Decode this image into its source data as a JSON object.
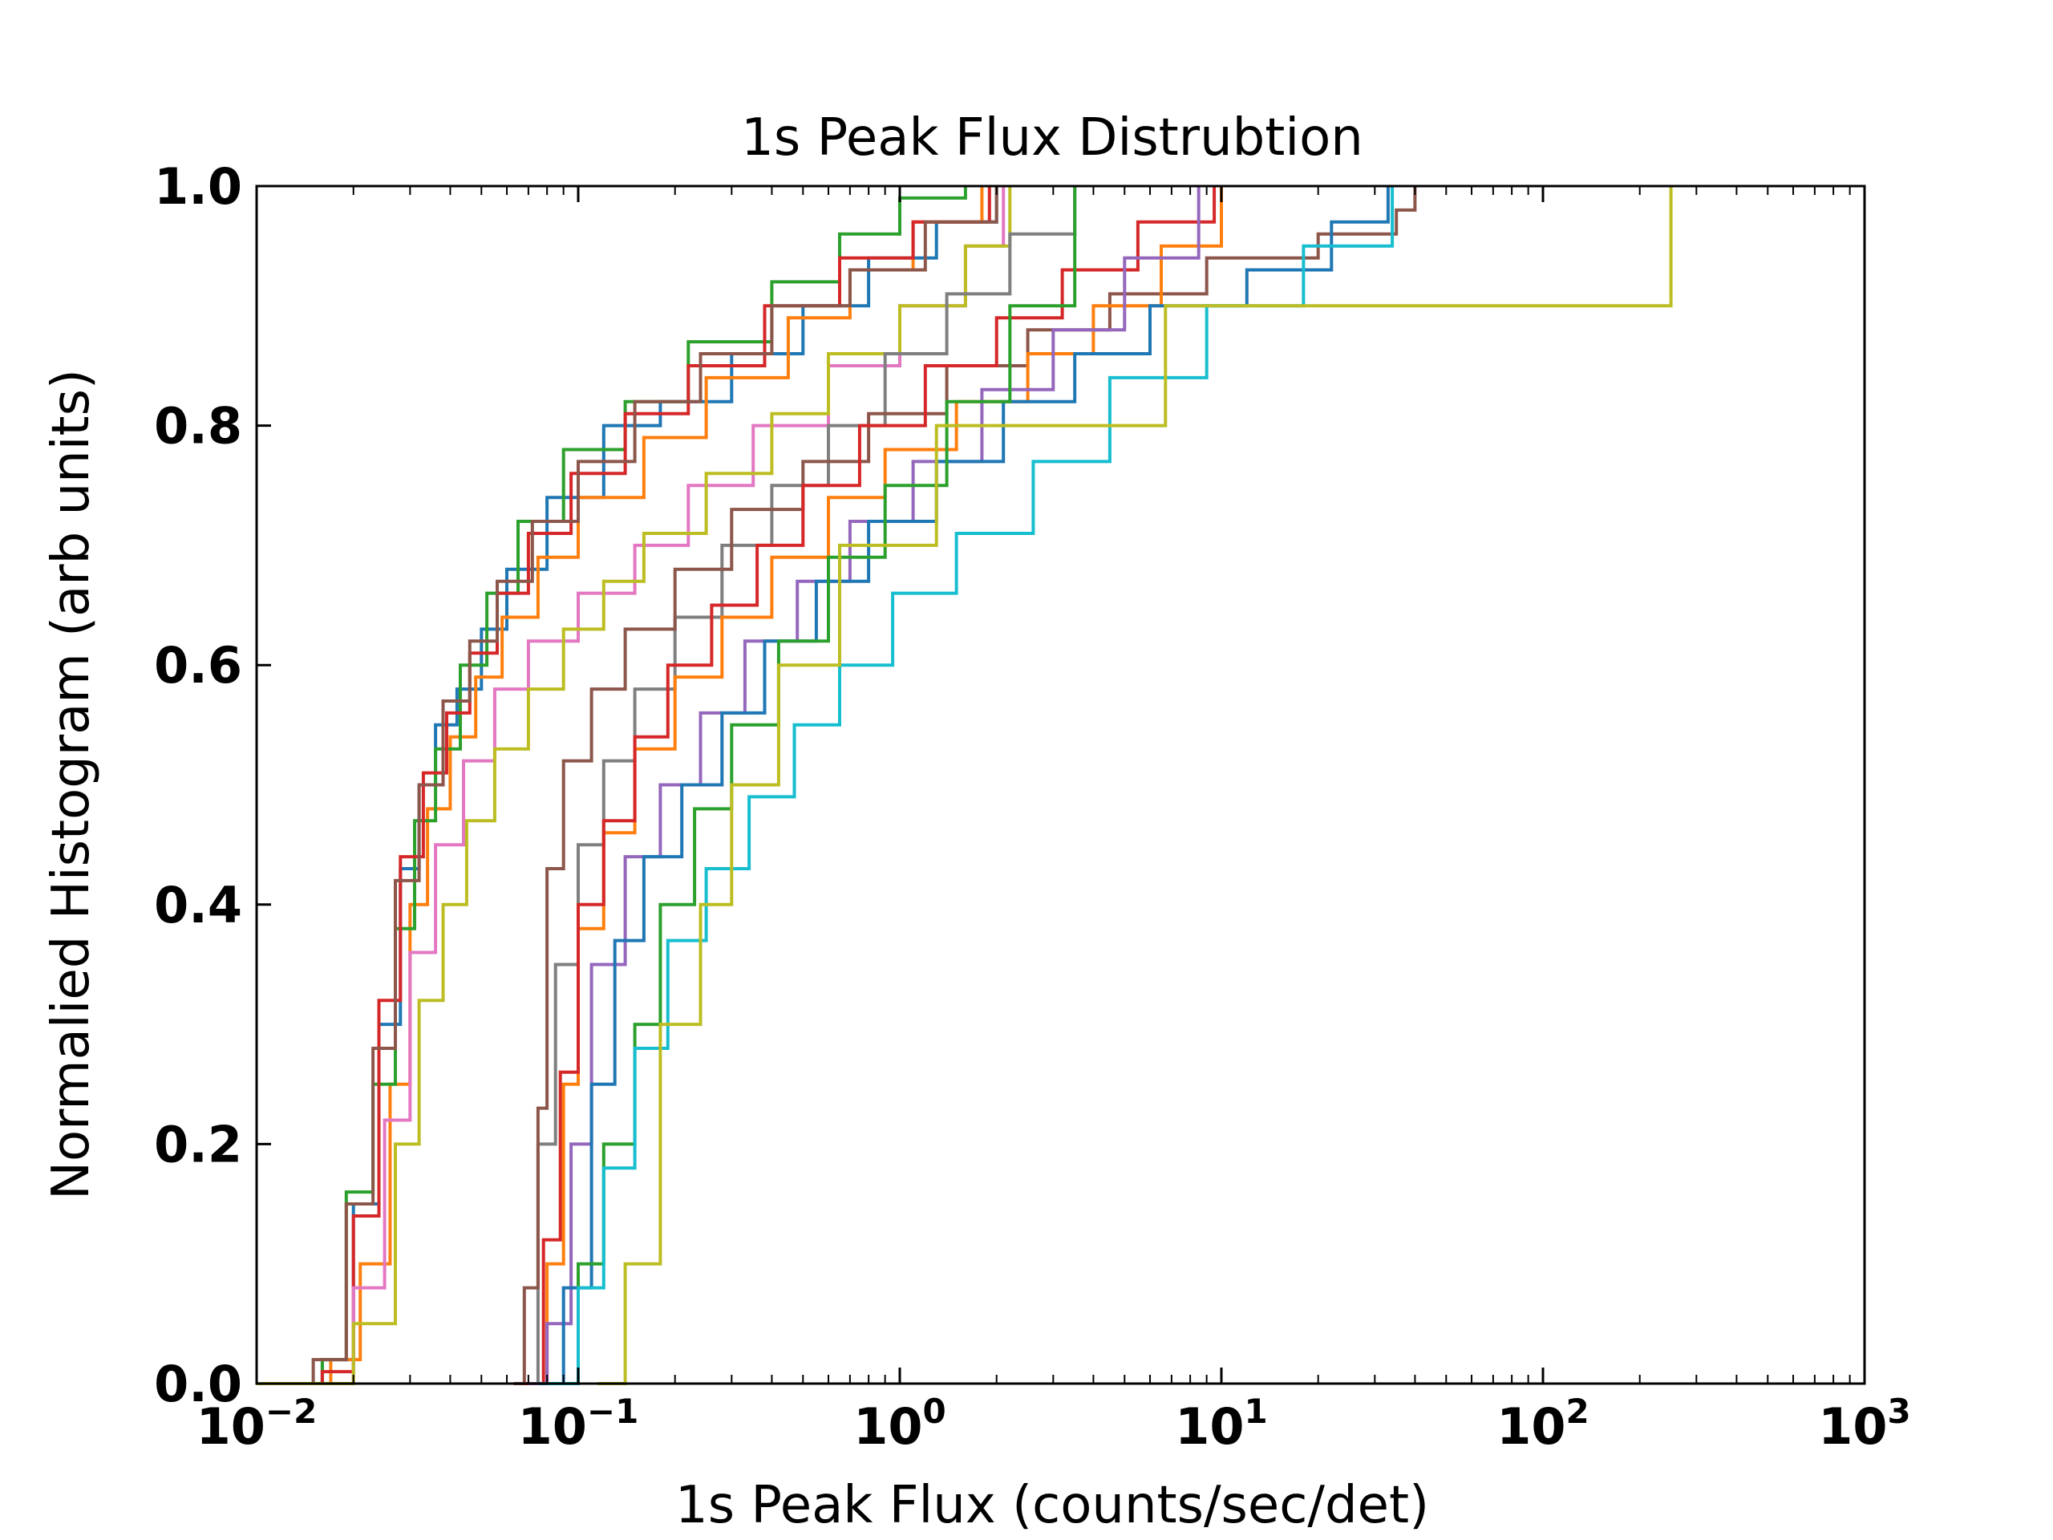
{
  "chart_data": {
    "type": "line",
    "title": "1s Peak Flux Distrubtion",
    "xlabel": "1s Peak Flux (counts/sec/det)",
    "ylabel": "Normalied Histogram (arb units)",
    "xscale": "log",
    "xlim": [
      0.01,
      1000
    ],
    "ylim": [
      0.0,
      1.0
    ],
    "grid": false,
    "legend": "none",
    "x_ticks": [
      "10^-2",
      "10^-1",
      "10^0",
      "10^1",
      "10^2",
      "10^3"
    ],
    "y_ticks": [
      "0.0",
      "0.2",
      "0.4",
      "0.6",
      "0.8",
      "1.0"
    ],
    "series": [
      {
        "color": "#1f77b4",
        "x": [
          0.01,
          0.016,
          0.02,
          0.024,
          0.028,
          0.032,
          0.036,
          0.042,
          0.05,
          0.06,
          0.08,
          0.12,
          0.18,
          0.3,
          0.5,
          0.8,
          1.3,
          2.0
        ],
        "y": [
          0.0,
          0.02,
          0.15,
          0.3,
          0.43,
          0.5,
          0.55,
          0.58,
          0.63,
          0.68,
          0.74,
          0.8,
          0.82,
          0.86,
          0.9,
          0.94,
          0.97,
          1.0
        ]
      },
      {
        "color": "#ff7f0e",
        "x": [
          0.01,
          0.017,
          0.021,
          0.026,
          0.03,
          0.034,
          0.04,
          0.048,
          0.058,
          0.075,
          0.1,
          0.16,
          0.25,
          0.45,
          0.7,
          1.1,
          1.8
        ],
        "y": [
          0.0,
          0.02,
          0.1,
          0.25,
          0.4,
          0.48,
          0.54,
          0.59,
          0.64,
          0.69,
          0.74,
          0.79,
          0.84,
          0.89,
          0.93,
          0.97,
          1.0
        ]
      },
      {
        "color": "#2ca02c",
        "x": [
          0.01,
          0.016,
          0.019,
          0.023,
          0.027,
          0.031,
          0.036,
          0.043,
          0.052,
          0.065,
          0.09,
          0.14,
          0.22,
          0.4,
          0.65,
          1.0,
          1.6
        ],
        "y": [
          0.0,
          0.02,
          0.16,
          0.25,
          0.38,
          0.47,
          0.53,
          0.6,
          0.66,
          0.72,
          0.78,
          0.82,
          0.87,
          0.92,
          0.96,
          0.99,
          1.0
        ]
      },
      {
        "color": "#d62728",
        "x": [
          0.01,
          0.016,
          0.02,
          0.024,
          0.028,
          0.033,
          0.039,
          0.046,
          0.056,
          0.07,
          0.095,
          0.14,
          0.22,
          0.38,
          0.65,
          1.1,
          1.9
        ],
        "y": [
          0.0,
          0.01,
          0.14,
          0.32,
          0.44,
          0.51,
          0.56,
          0.61,
          0.66,
          0.71,
          0.76,
          0.81,
          0.85,
          0.9,
          0.94,
          0.97,
          1.0
        ]
      },
      {
        "color": "#8c564b",
        "x": [
          0.01,
          0.015,
          0.019,
          0.023,
          0.027,
          0.032,
          0.038,
          0.046,
          0.056,
          0.072,
          0.1,
          0.15,
          0.24,
          0.4,
          0.7,
          1.2,
          2.0
        ],
        "y": [
          0.0,
          0.02,
          0.15,
          0.28,
          0.42,
          0.5,
          0.57,
          0.62,
          0.67,
          0.72,
          0.77,
          0.82,
          0.86,
          0.9,
          0.93,
          0.97,
          1.0
        ]
      },
      {
        "color": "#e377c2",
        "x": [
          0.01,
          0.02,
          0.025,
          0.03,
          0.036,
          0.044,
          0.055,
          0.07,
          0.1,
          0.15,
          0.22,
          0.35,
          0.6,
          1.0,
          1.6,
          2.1
        ],
        "y": [
          0.0,
          0.08,
          0.22,
          0.36,
          0.45,
          0.52,
          0.58,
          0.62,
          0.66,
          0.7,
          0.75,
          0.8,
          0.85,
          0.9,
          0.95,
          1.0
        ]
      },
      {
        "color": "#bcbd22",
        "x": [
          0.01,
          0.02,
          0.027,
          0.032,
          0.038,
          0.045,
          0.055,
          0.07,
          0.09,
          0.12,
          0.16,
          0.25,
          0.4,
          0.6,
          1.0,
          1.6,
          2.2
        ],
        "y": [
          0.0,
          0.05,
          0.2,
          0.32,
          0.4,
          0.47,
          0.53,
          0.58,
          0.63,
          0.67,
          0.71,
          0.76,
          0.81,
          0.86,
          0.9,
          0.95,
          1.0
        ]
      },
      {
        "color": "#7f7f7f",
        "x": [
          0.065,
          0.075,
          0.085,
          0.1,
          0.12,
          0.15,
          0.2,
          0.28,
          0.4,
          0.6,
          0.9,
          1.4,
          2.2,
          3.5
        ],
        "y": [
          0.0,
          0.2,
          0.35,
          0.45,
          0.52,
          0.58,
          0.64,
          0.7,
          0.75,
          0.8,
          0.86,
          0.91,
          0.96,
          1.0
        ]
      },
      {
        "color": "#8c564b",
        "x": [
          0.063,
          0.068,
          0.075,
          0.08,
          0.09,
          0.11,
          0.14,
          0.2,
          0.3,
          0.5,
          0.8,
          1.4,
          2.5,
          4.5,
          9.0,
          20.0,
          35.0,
          40.0
        ],
        "y": [
          0.0,
          0.08,
          0.23,
          0.43,
          0.52,
          0.58,
          0.63,
          0.68,
          0.73,
          0.77,
          0.81,
          0.85,
          0.88,
          0.91,
          0.94,
          0.96,
          0.98,
          1.0
        ]
      },
      {
        "color": "#ff7f0e",
        "x": [
          0.07,
          0.08,
          0.09,
          0.1,
          0.12,
          0.15,
          0.2,
          0.28,
          0.4,
          0.6,
          0.9,
          1.5,
          2.5,
          4.0,
          6.5,
          10.0
        ],
        "y": [
          0.0,
          0.1,
          0.25,
          0.38,
          0.46,
          0.53,
          0.59,
          0.64,
          0.69,
          0.74,
          0.78,
          0.82,
          0.86,
          0.9,
          0.95,
          1.0
        ]
      },
      {
        "color": "#d62728",
        "x": [
          0.068,
          0.078,
          0.088,
          0.1,
          0.12,
          0.15,
          0.19,
          0.26,
          0.36,
          0.5,
          0.75,
          1.2,
          2.0,
          3.2,
          5.5,
          9.5
        ],
        "y": [
          0.0,
          0.12,
          0.26,
          0.4,
          0.47,
          0.54,
          0.6,
          0.65,
          0.7,
          0.75,
          0.8,
          0.85,
          0.89,
          0.93,
          0.97,
          1.0
        ]
      },
      {
        "color": "#9467bd",
        "x": [
          0.07,
          0.08,
          0.095,
          0.11,
          0.14,
          0.18,
          0.24,
          0.33,
          0.48,
          0.7,
          1.1,
          1.8,
          3.0,
          5.0,
          8.5
        ],
        "y": [
          0.0,
          0.05,
          0.2,
          0.35,
          0.44,
          0.5,
          0.56,
          0.62,
          0.67,
          0.72,
          0.77,
          0.83,
          0.88,
          0.94,
          1.0
        ]
      },
      {
        "color": "#1f77b4",
        "x": [
          0.075,
          0.09,
          0.11,
          0.13,
          0.16,
          0.21,
          0.28,
          0.38,
          0.55,
          0.8,
          1.3,
          2.1,
          3.5,
          6.0,
          12.0,
          22.0,
          33.0
        ],
        "y": [
          0.0,
          0.08,
          0.25,
          0.37,
          0.44,
          0.5,
          0.56,
          0.62,
          0.67,
          0.72,
          0.77,
          0.82,
          0.86,
          0.9,
          0.93,
          0.97,
          1.0
        ]
      },
      {
        "color": "#2ca02c",
        "x": [
          0.08,
          0.1,
          0.12,
          0.15,
          0.18,
          0.23,
          0.3,
          0.42,
          0.6,
          0.9,
          1.4,
          2.2,
          3.5
        ],
        "y": [
          0.0,
          0.1,
          0.2,
          0.3,
          0.4,
          0.48,
          0.55,
          0.62,
          0.69,
          0.75,
          0.82,
          0.9,
          1.0
        ]
      },
      {
        "color": "#17becf",
        "x": [
          0.08,
          0.1,
          0.12,
          0.15,
          0.19,
          0.25,
          0.34,
          0.47,
          0.65,
          0.95,
          1.5,
          2.6,
          4.5,
          9.0,
          18.0,
          34.0
        ],
        "y": [
          0.0,
          0.08,
          0.18,
          0.28,
          0.37,
          0.43,
          0.49,
          0.55,
          0.6,
          0.66,
          0.71,
          0.77,
          0.84,
          0.9,
          0.95,
          1.0
        ]
      },
      {
        "color": "#bcbd22",
        "x": [
          0.115,
          0.14,
          0.18,
          0.24,
          0.3,
          0.42,
          0.65,
          1.3,
          6.7,
          250.0
        ],
        "y": [
          0.0,
          0.1,
          0.3,
          0.4,
          0.5,
          0.6,
          0.7,
          0.8,
          0.9,
          1.0
        ]
      }
    ]
  }
}
